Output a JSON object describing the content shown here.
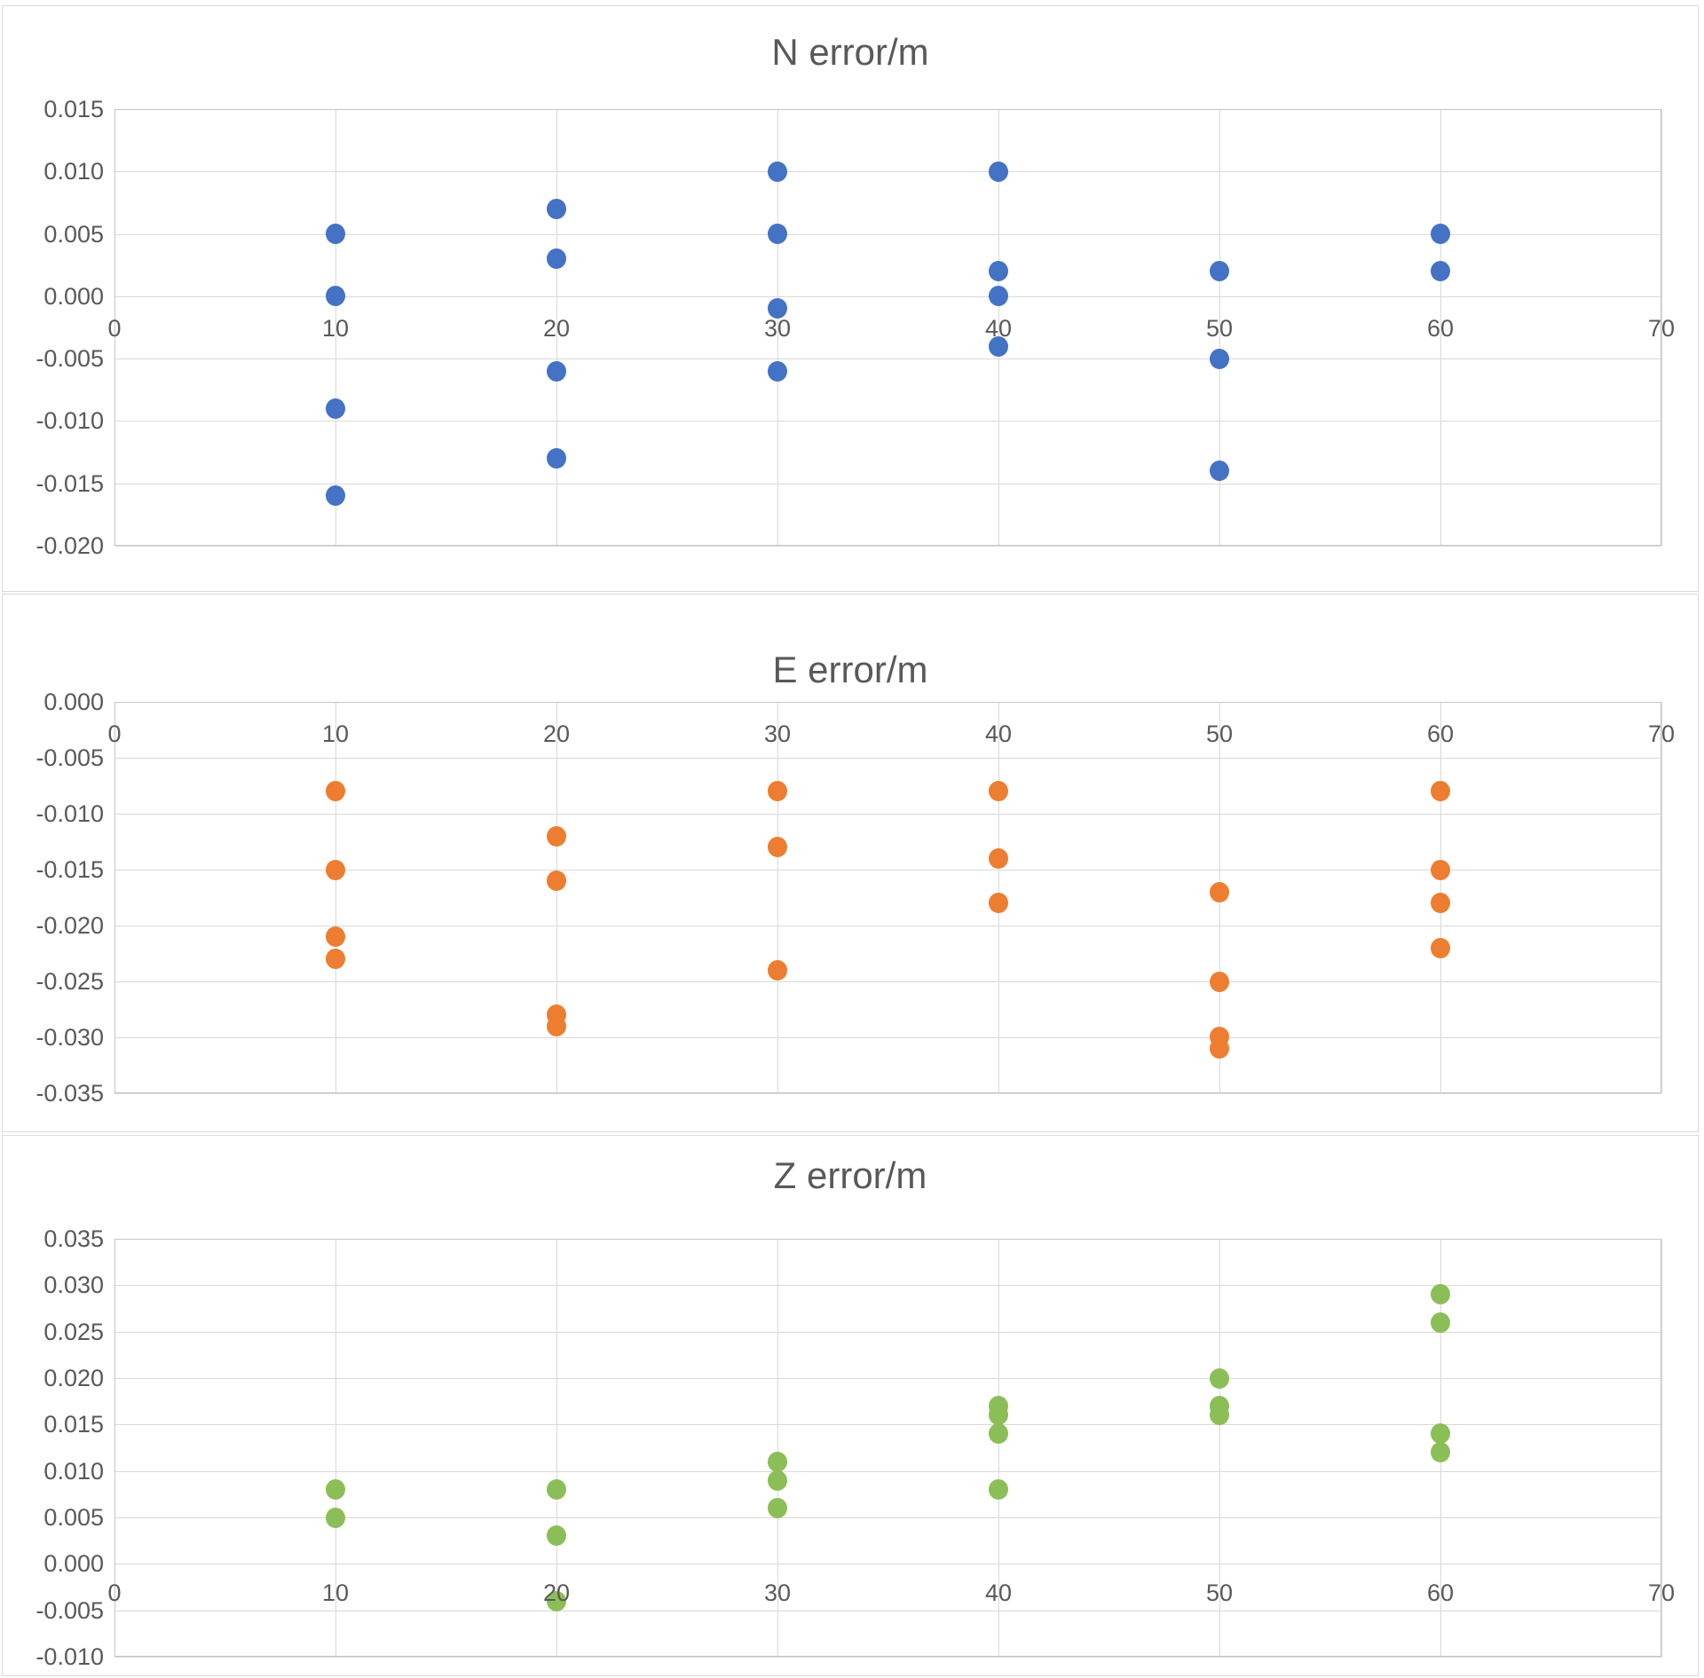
{
  "page": {
    "background": "#ffffff"
  },
  "chart_data": [
    {
      "type": "scatter",
      "title": "N error/m",
      "series_color": "#4472C4",
      "marker": "circle",
      "legend": "none",
      "grid": true,
      "x_axis": {
        "min": 0,
        "max": 70,
        "step": 10,
        "tick_labels": [
          "0",
          "10",
          "20",
          "30",
          "40",
          "50",
          "60",
          "70"
        ]
      },
      "y_axis": {
        "min": -0.02,
        "max": 0.015,
        "step": 0.005,
        "tick_labels": [
          "0.015",
          "0.010",
          "0.005",
          "0.000",
          "-0.005",
          "-0.010",
          "-0.015",
          "-0.020"
        ]
      },
      "points": [
        {
          "x": 10,
          "y": 0.005
        },
        {
          "x": 10,
          "y": 0.0
        },
        {
          "x": 10,
          "y": -0.009
        },
        {
          "x": 10,
          "y": -0.016
        },
        {
          "x": 20,
          "y": 0.007
        },
        {
          "x": 20,
          "y": 0.003
        },
        {
          "x": 20,
          "y": -0.006
        },
        {
          "x": 20,
          "y": -0.013
        },
        {
          "x": 30,
          "y": 0.01
        },
        {
          "x": 30,
          "y": 0.005
        },
        {
          "x": 30,
          "y": -0.001
        },
        {
          "x": 30,
          "y": -0.006
        },
        {
          "x": 40,
          "y": 0.01
        },
        {
          "x": 40,
          "y": 0.002
        },
        {
          "x": 40,
          "y": 0.0
        },
        {
          "x": 40,
          "y": -0.004
        },
        {
          "x": 50,
          "y": 0.002
        },
        {
          "x": 50,
          "y": -0.005
        },
        {
          "x": 50,
          "y": -0.014
        },
        {
          "x": 60,
          "y": 0.005
        },
        {
          "x": 60,
          "y": 0.002
        }
      ]
    },
    {
      "type": "scatter",
      "title": "E error/m",
      "series_color": "#ED7D31",
      "marker": "circle",
      "legend": "none",
      "grid": true,
      "x_axis": {
        "min": 0,
        "max": 70,
        "step": 10,
        "tick_labels": [
          "0",
          "10",
          "20",
          "30",
          "40",
          "50",
          "60",
          "70"
        ]
      },
      "y_axis": {
        "min": -0.035,
        "max": 0.0,
        "step": 0.005,
        "tick_labels": [
          "0.000",
          "-0.005",
          "-0.010",
          "-0.015",
          "-0.020",
          "-0.025",
          "-0.030",
          "-0.035"
        ]
      },
      "points": [
        {
          "x": 10,
          "y": -0.008
        },
        {
          "x": 10,
          "y": -0.015
        },
        {
          "x": 10,
          "y": -0.021
        },
        {
          "x": 10,
          "y": -0.023
        },
        {
          "x": 20,
          "y": -0.012
        },
        {
          "x": 20,
          "y": -0.016
        },
        {
          "x": 20,
          "y": -0.028
        },
        {
          "x": 20,
          "y": -0.029
        },
        {
          "x": 30,
          "y": -0.008
        },
        {
          "x": 30,
          "y": -0.013
        },
        {
          "x": 30,
          "y": -0.024
        },
        {
          "x": 40,
          "y": -0.008
        },
        {
          "x": 40,
          "y": -0.014
        },
        {
          "x": 40,
          "y": -0.018
        },
        {
          "x": 50,
          "y": -0.017
        },
        {
          "x": 50,
          "y": -0.025
        },
        {
          "x": 50,
          "y": -0.03
        },
        {
          "x": 50,
          "y": -0.031
        },
        {
          "x": 60,
          "y": -0.008
        },
        {
          "x": 60,
          "y": -0.015
        },
        {
          "x": 60,
          "y": -0.018
        },
        {
          "x": 60,
          "y": -0.022
        }
      ]
    },
    {
      "type": "scatter",
      "title": "Z error/m",
      "series_color": "#8CBE57",
      "marker": "circle",
      "legend": "none",
      "grid": true,
      "x_axis": {
        "min": 0,
        "max": 70,
        "step": 10,
        "tick_labels": [
          "0",
          "10",
          "20",
          "30",
          "40",
          "50",
          "60",
          "70"
        ]
      },
      "y_axis": {
        "min": -0.01,
        "max": 0.035,
        "step": 0.005,
        "tick_labels": [
          "0.035",
          "0.030",
          "0.025",
          "0.020",
          "0.015",
          "0.010",
          "0.005",
          "0.000",
          "-0.005",
          "-0.010"
        ]
      },
      "points": [
        {
          "x": 10,
          "y": 0.008
        },
        {
          "x": 10,
          "y": 0.005
        },
        {
          "x": 20,
          "y": 0.008
        },
        {
          "x": 20,
          "y": 0.003
        },
        {
          "x": 20,
          "y": -0.004
        },
        {
          "x": 30,
          "y": 0.011
        },
        {
          "x": 30,
          "y": 0.009
        },
        {
          "x": 30,
          "y": 0.006
        },
        {
          "x": 40,
          "y": 0.017
        },
        {
          "x": 40,
          "y": 0.016
        },
        {
          "x": 40,
          "y": 0.014
        },
        {
          "x": 40,
          "y": 0.008
        },
        {
          "x": 50,
          "y": 0.02
        },
        {
          "x": 50,
          "y": 0.017
        },
        {
          "x": 50,
          "y": 0.016
        },
        {
          "x": 60,
          "y": 0.029
        },
        {
          "x": 60,
          "y": 0.026
        },
        {
          "x": 60,
          "y": 0.014
        },
        {
          "x": 60,
          "y": 0.012
        }
      ]
    }
  ]
}
